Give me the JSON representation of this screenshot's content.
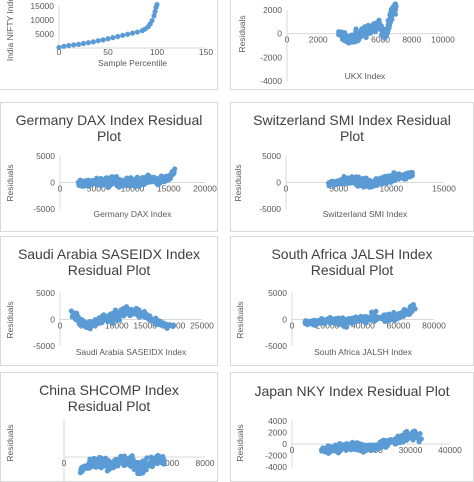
{
  "palette": {
    "marker": "#5b9bd5",
    "axis": "#d9d9d9",
    "text": "#595959",
    "title": "#404040",
    "panel_border": "#d9d9d9"
  },
  "chart_data": [
    {
      "type": "scatter",
      "title": [],
      "xlabel": "Sample Percentile",
      "ylabel": "India NIFTY Index",
      "xlim": [
        0,
        150
      ],
      "ylim": [
        0,
        15000
      ],
      "xticks": [
        "0",
        "50",
        "100",
        "150"
      ],
      "yticks": [
        "5000",
        "10000",
        "15000"
      ],
      "curve": "percentile",
      "points": [
        [
          0,
          200
        ],
        [
          5,
          600
        ],
        [
          10,
          900
        ],
        [
          15,
          1100
        ],
        [
          20,
          1300
        ],
        [
          25,
          1600
        ],
        [
          30,
          1900
        ],
        [
          35,
          2200
        ],
        [
          40,
          2600
        ],
        [
          45,
          2900
        ],
        [
          50,
          3300
        ],
        [
          55,
          3700
        ],
        [
          60,
          4100
        ],
        [
          65,
          4500
        ],
        [
          70,
          4900
        ],
        [
          75,
          5300
        ],
        [
          80,
          5700
        ],
        [
          85,
          6200
        ],
        [
          88,
          6800
        ],
        [
          91,
          7600
        ],
        [
          93,
          8600
        ],
        [
          95,
          9800
        ],
        [
          97,
          11500
        ],
        [
          98,
          13000
        ],
        [
          99,
          14500
        ],
        [
          100,
          15500
        ]
      ]
    },
    {
      "type": "scatter",
      "title": [],
      "xlabel": "UKX Index",
      "ylabel": "Residuals",
      "xlim": [
        0,
        10000
      ],
      "ylim": [
        -4000,
        2000
      ],
      "xticks": [
        "0",
        "2000",
        "4000",
        "6000",
        "8000",
        "10000"
      ],
      "yticks": [
        "2000",
        "0",
        "-2000",
        "-4000"
      ],
      "cloud": {
        "x_from": 3300,
        "x_to": 7000,
        "center": [
          0,
          -300,
          -500,
          -200,
          0,
          200,
          600,
          800,
          -200,
          1400,
          2300
        ],
        "spread": [
          300,
          600,
          700,
          700,
          600,
          600,
          600,
          700,
          700,
          900,
          800
        ]
      }
    },
    {
      "type": "scatter",
      "title": [
        "Germany DAX Index  Residual",
        "Plot"
      ],
      "xlabel": "Germany DAX Index",
      "ylabel": "Residuals",
      "xlim": [
        0,
        20000
      ],
      "ylim": [
        -5000,
        5000
      ],
      "xticks": [
        "0",
        "5000",
        "10000",
        "15000",
        "20000"
      ],
      "yticks": [
        "5000",
        "0",
        "-5000"
      ],
      "cloud": {
        "x_from": 2500,
        "x_to": 16000,
        "center": [
          -300,
          -100,
          200,
          0,
          300,
          -200,
          100,
          0,
          500,
          300,
          700,
          2200
        ],
        "spread": [
          700,
          900,
          1100,
          1300,
          1300,
          1200,
          1100,
          1300,
          1300,
          1000,
          1000,
          700
        ]
      }
    },
    {
      "type": "scatter",
      "title": [
        "Switzerland SMI Index  Residual",
        "Plot"
      ],
      "xlabel": "Switzerland SMI Index",
      "ylabel": "Residuals",
      "xlim": [
        0,
        15000
      ],
      "ylim": [
        -5000,
        5000
      ],
      "xticks": [
        "0",
        "5000",
        "10000",
        "15000"
      ],
      "yticks": [
        "5000",
        "0",
        "-5000"
      ],
      "cloud": {
        "x_from": 4000,
        "x_to": 12000,
        "center": [
          -300,
          0,
          300,
          500,
          300,
          0,
          -200,
          200,
          600,
          1000,
          1200,
          1600
        ],
        "spread": [
          500,
          700,
          900,
          1200,
          1300,
          1300,
          1200,
          1200,
          1300,
          1200,
          1100,
          900
        ]
      }
    },
    {
      "type": "scatter",
      "title": [
        "Saudi Arabia SASEIDX Index",
        "Residual Plot"
      ],
      "xlabel": "Saudi Arabia SASEIDX Index",
      "ylabel": "Residuals",
      "xlim": [
        0,
        25000
      ],
      "ylim": [
        -5000,
        5000
      ],
      "xticks": [
        "0",
        "5000",
        "10000",
        "15000",
        "20000",
        "25000"
      ],
      "yticks": [
        "5000",
        "0",
        "-5000"
      ],
      "cloud": {
        "x_from": 2000,
        "x_to": 20000,
        "center": [
          1500,
          -600,
          -1000,
          -200,
          300,
          800,
          1600,
          1200,
          600,
          -400,
          -1000,
          -1300
        ],
        "spread": [
          1300,
          1100,
          1200,
          1300,
          1400,
          1600,
          1400,
          1300,
          1100,
          900,
          700,
          500
        ]
      }
    },
    {
      "type": "scatter",
      "title": [
        "South Africa JALSH Index",
        "Residual Plot"
      ],
      "xlabel": "South Africa JALSH Index",
      "ylabel": "Residuals",
      "xlim": [
        0,
        80000
      ],
      "ylim": [
        -5000,
        5000
      ],
      "xticks": [
        "0",
        "20000",
        "40000",
        "60000",
        "80000"
      ],
      "yticks": [
        "5000",
        "0",
        "-5000"
      ],
      "cloud": {
        "x_from": 7000,
        "x_to": 70000,
        "center": [
          -300,
          -700,
          -300,
          -100,
          -700,
          0,
          200,
          500,
          300,
          500,
          1400,
          2500
        ],
        "spread": [
          600,
          800,
          900,
          1000,
          1000,
          1100,
          1100,
          1200,
          1200,
          1300,
          1100,
          900
        ]
      }
    },
    {
      "type": "scatter",
      "title": [
        "China SHCOMP Index",
        "Residual Plot"
      ],
      "xlabel": "",
      "ylabel": "Residuals",
      "xlim": [
        0,
        8000
      ],
      "ylim": [
        -5000,
        5000
      ],
      "xticks": [
        "0",
        "2000",
        "4000",
        "6000",
        "8000"
      ],
      "yticks": [],
      "cloud": {
        "x_from": 900,
        "x_to": 5700,
        "center": [
          -1800,
          -1000,
          -500,
          -700,
          -1100,
          -600,
          -400,
          -900,
          -1500,
          -800,
          -300,
          -600
        ],
        "spread": [
          600,
          900,
          1000,
          1100,
          1000,
          1100,
          1000,
          1200,
          1200,
          1100,
          900,
          700
        ]
      }
    },
    {
      "type": "scatter",
      "title": [
        "Japan NKY Index  Residual Plot"
      ],
      "xlabel": "",
      "ylabel": "Residuals",
      "xlim": [
        0,
        40000
      ],
      "ylim": [
        -4000,
        4000
      ],
      "xticks": [
        "0",
        "10000",
        "20000",
        "30000",
        "40000"
      ],
      "yticks": [
        "4000",
        "2000",
        "0",
        "-2000",
        "-4000"
      ],
      "cloud": {
        "x_from": 7500,
        "x_to": 33000,
        "center": [
          -1100,
          -900,
          -700,
          -400,
          -300,
          -700,
          -500,
          0,
          500,
          1200,
          1700,
          1000
        ],
        "spread": [
          800,
          900,
          900,
          1000,
          1100,
          1000,
          1000,
          1100,
          1200,
          1300,
          1200,
          1500
        ]
      }
    }
  ]
}
